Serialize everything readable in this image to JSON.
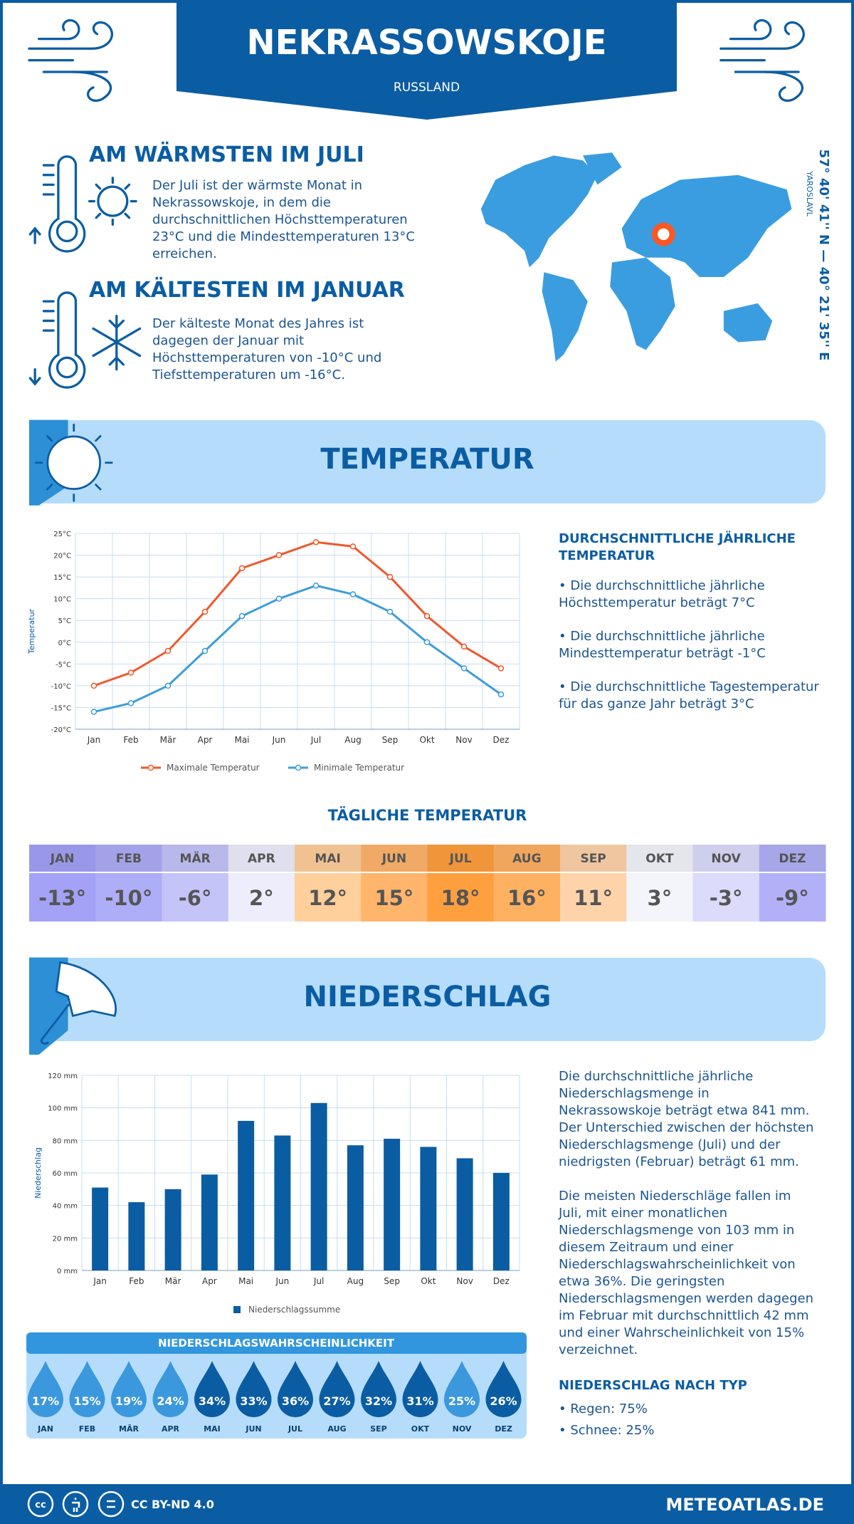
{
  "header": {
    "title": "NEKRASSOWSKOJE",
    "country": "RUSSLAND"
  },
  "location": {
    "coordinates": "57° 40' 41'' N — 40° 21' 35'' E",
    "region": "YAROSLAVL"
  },
  "highlights": [
    {
      "title": "AM WÄRMSTEN IM JULI",
      "text": "Der Juli ist der wärmste Monat in Nekrassowskoje, in dem die durchschnittlichen Höchsttemperaturen 23°C und die Mindesttemperaturen 13°C erreichen."
    },
    {
      "title": "AM KÄLTESTEN IM JANUAR",
      "text": "Der kälteste Monat des Jahres ist dagegen der Januar mit Höchsttemperaturen von -10°C und Tiefsttemperaturen um -16°C."
    }
  ],
  "temperature": {
    "title": "TEMPERATUR",
    "summary_title": "DURCHSCHNITTLICHE JÄHRLICHE TEMPERATUR",
    "bullets": [
      "• Die durchschnittliche jährliche Höchsttemperatur beträgt 7°C",
      "• Die durchschnittliche jährliche Mindesttemperatur beträgt -1°C",
      "• Die durchschnittliche Tagestemperatur für das ganze Jahr beträgt 3°C"
    ]
  },
  "daily_temperature": {
    "title": "TÄGLICHE TEMPERATUR",
    "months": [
      "JAN",
      "FEB",
      "MÄR",
      "APR",
      "MAI",
      "JUN",
      "JUL",
      "AUG",
      "SEP",
      "OKT",
      "NOV",
      "DEZ"
    ],
    "values": [
      "-13°",
      "-10°",
      "-6°",
      "2°",
      "12°",
      "15°",
      "18°",
      "16°",
      "11°",
      "3°",
      "-3°",
      "-9°"
    ],
    "colors": [
      "#a3a2f7",
      "#aeadf8",
      "#c5c4f9",
      "#ededfc",
      "#ffcf9c",
      "#ffb56c",
      "#ff9f3e",
      "#ffb162",
      "#ffd3aa",
      "#f4f4fb",
      "#dcdbfb",
      "#b2b1f8"
    ]
  },
  "precipitation": {
    "title": "NIEDERSCHLAG",
    "paragraphs": [
      "Die durchschnittliche jährliche Niederschlagsmenge in Nekrassowskoje beträgt etwa 841 mm. Der Unterschied zwischen der höchsten Niederschlagsmenge (Juli) und der niedrigsten (Februar) beträgt 61 mm.",
      "Die meisten Niederschläge fallen im Juli, mit einer monatlichen Niederschlagsmenge von 103 mm in diesem Zeitraum und einer Niederschlagswahrscheinlichkeit von etwa 36%. Die geringsten Niederschlagsmengen werden dagegen im Februar mit durchschnittlich 42 mm und einer Wahrscheinlichkeit von 15% verzeichnet."
    ],
    "probability_title": "NIEDERSCHLAGSWAHRSCHEINLICHKEIT",
    "probability_months": [
      "JAN",
      "FEB",
      "MÄR",
      "APR",
      "MAI",
      "JUN",
      "JUL",
      "AUG",
      "SEP",
      "OKT",
      "NOV",
      "DEZ"
    ],
    "probability_values": [
      "17%",
      "15%",
      "19%",
      "24%",
      "34%",
      "33%",
      "36%",
      "27%",
      "32%",
      "31%",
      "25%",
      "26%"
    ],
    "probability_colors": [
      "#3b98dd",
      "#3b98dd",
      "#3b98dd",
      "#3b98dd",
      "#0b5da3",
      "#0b5da3",
      "#0b5da3",
      "#0b5da3",
      "#0b5da3",
      "#0b5da3",
      "#3b98dd",
      "#0b5da3"
    ],
    "type_title": "NIEDERSCHLAG NACH TYP",
    "types": [
      "• Regen: 75%",
      "• Schnee: 25%"
    ]
  },
  "footer": {
    "license": "CC BY-ND 4.0",
    "site": "METEOATLAS.DE"
  },
  "chart_data": [
    {
      "type": "line",
      "y_label": "Temperatur",
      "categories": [
        "Jan",
        "Feb",
        "Mär",
        "Apr",
        "Mai",
        "Jun",
        "Jul",
        "Aug",
        "Sep",
        "Okt",
        "Nov",
        "Dez"
      ],
      "series": [
        {
          "name": "Maximale Temperatur",
          "color": "#f0582a",
          "values": [
            -10,
            -7,
            -2,
            7,
            17,
            20,
            23,
            22,
            15,
            6,
            -1,
            -6
          ]
        },
        {
          "name": "Minimale Temperatur",
          "color": "#3d9ddb",
          "values": [
            -16,
            -14,
            -10,
            -2,
            6,
            10,
            13,
            11,
            7,
            0,
            -6,
            -12
          ]
        }
      ],
      "ylim": [
        -20,
        25
      ],
      "yticks": [
        {
          "value": -20,
          "label": "-20°C"
        },
        {
          "value": -15,
          "label": "-15°C"
        },
        {
          "value": -10,
          "label": "-10°C"
        },
        {
          "value": -5,
          "label": "-5°C"
        },
        {
          "value": 0,
          "label": "0°C"
        },
        {
          "value": 5,
          "label": "5°C"
        },
        {
          "value": 10,
          "label": "10°C"
        },
        {
          "value": 15,
          "label": "15°C"
        },
        {
          "value": 20,
          "label": "20°C"
        },
        {
          "value": 25,
          "label": "25°C"
        }
      ],
      "grid": true
    },
    {
      "type": "bar",
      "y_label": "Niederschlag",
      "categories": [
        "Jan",
        "Feb",
        "Mär",
        "Apr",
        "Mai",
        "Jun",
        "Jul",
        "Aug",
        "Sep",
        "Okt",
        "Nov",
        "Dez"
      ],
      "series": [
        {
          "name": "Niederschlagssumme",
          "color": "#0b5da3",
          "values": [
            51,
            42,
            50,
            59,
            92,
            83,
            103,
            77,
            81,
            76,
            69,
            60
          ]
        }
      ],
      "ylim": [
        0,
        120
      ],
      "yticks": [
        {
          "value": 0,
          "label": "0 mm"
        },
        {
          "value": 20,
          "label": "20 mm"
        },
        {
          "value": 40,
          "label": "40 mm"
        },
        {
          "value": 60,
          "label": "60 mm"
        },
        {
          "value": 80,
          "label": "80 mm"
        },
        {
          "value": 100,
          "label": "100 mm"
        },
        {
          "value": 120,
          "label": "120 mm"
        }
      ],
      "grid": true
    }
  ]
}
